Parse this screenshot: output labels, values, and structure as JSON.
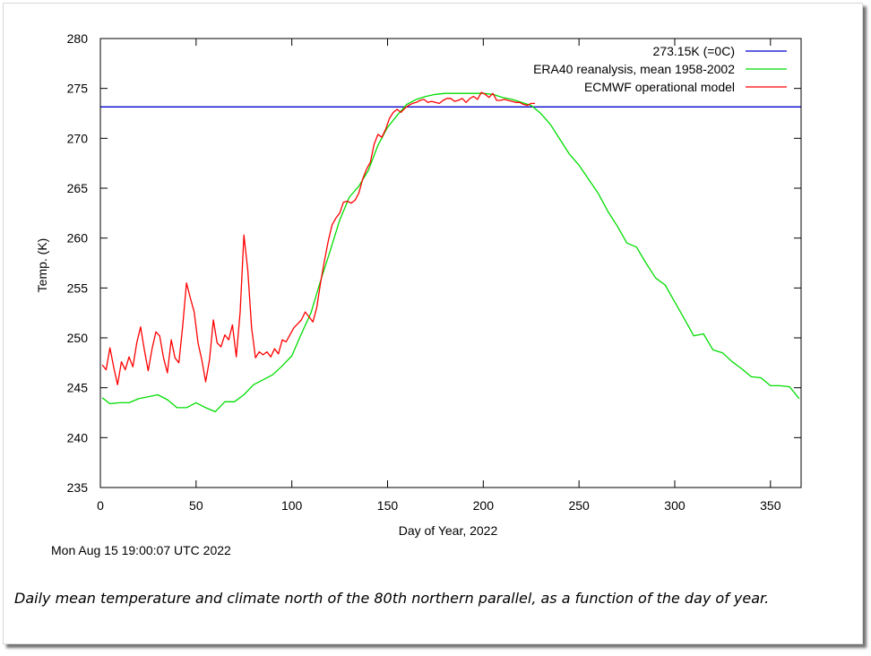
{
  "caption": "Daily mean temperature and climate north of the 80th northern parallel, as a function of the day of year.",
  "timestamp": "Mon Aug 15 19:00:07 UTC 2022",
  "chart_data": {
    "type": "line",
    "xlabel": "Day of Year, 2022",
    "ylabel": "Temp. (K)",
    "xlim": [
      0,
      366
    ],
    "ylim": [
      235,
      280
    ],
    "xticks": [
      0,
      50,
      100,
      150,
      200,
      250,
      300,
      350
    ],
    "yticks": [
      235,
      240,
      245,
      250,
      255,
      260,
      265,
      270,
      275,
      280
    ],
    "grid": false,
    "legend_position": "top-right",
    "series": [
      {
        "name": "273.15K (=0C)",
        "color": "#0000cc",
        "x": [
          0,
          366
        ],
        "y": [
          273.15,
          273.15
        ]
      },
      {
        "name": "ERA40 reanalysis, mean 1958-2002",
        "color": "#00dd00",
        "x": [
          1,
          5,
          10,
          15,
          20,
          25,
          30,
          35,
          40,
          45,
          50,
          55,
          60,
          65,
          70,
          75,
          80,
          85,
          90,
          95,
          100,
          105,
          110,
          115,
          120,
          125,
          130,
          135,
          140,
          145,
          150,
          155,
          160,
          165,
          170,
          175,
          180,
          185,
          190,
          195,
          200,
          205,
          210,
          215,
          220,
          225,
          230,
          235,
          240,
          245,
          250,
          255,
          260,
          265,
          270,
          275,
          280,
          285,
          290,
          295,
          300,
          305,
          310,
          315,
          320,
          325,
          330,
          335,
          340,
          345,
          350,
          355,
          360,
          365
        ],
        "y": [
          244.0,
          243.4,
          243.5,
          243.5,
          243.9,
          244.1,
          244.3,
          243.8,
          243.0,
          243.0,
          243.5,
          243.0,
          242.6,
          243.6,
          243.6,
          244.3,
          245.3,
          245.8,
          246.3,
          247.2,
          248.2,
          250.4,
          252.5,
          255.7,
          258.7,
          261.8,
          264.1,
          265.2,
          266.8,
          269.3,
          271.1,
          272.3,
          273.4,
          273.9,
          274.2,
          274.4,
          274.5,
          274.5,
          274.5,
          274.5,
          274.5,
          274.4,
          274.1,
          273.9,
          273.6,
          273.3,
          272.5,
          271.4,
          269.9,
          268.4,
          267.3,
          265.9,
          264.5,
          262.7,
          261.2,
          259.5,
          259.1,
          257.5,
          256.0,
          255.3,
          253.6,
          251.9,
          250.2,
          250.4,
          248.8,
          248.5,
          247.6,
          246.9,
          246.1,
          246.0,
          245.2,
          245.2,
          245.1,
          243.9
        ]
      },
      {
        "name": "ECMWF operational model",
        "color": "#ff0000",
        "x": [
          1,
          3,
          5,
          7,
          9,
          11,
          13,
          15,
          17,
          19,
          21,
          23,
          25,
          27,
          29,
          31,
          33,
          35,
          37,
          39,
          41,
          43,
          45,
          47,
          49,
          51,
          53,
          55,
          57,
          59,
          61,
          63,
          65,
          67,
          69,
          71,
          73,
          75,
          77,
          79,
          81,
          83,
          85,
          87,
          89,
          91,
          93,
          95,
          97,
          99,
          101,
          103,
          105,
          107,
          109,
          111,
          113,
          115,
          117,
          119,
          121,
          123,
          125,
          127,
          129,
          131,
          133,
          135,
          137,
          139,
          141,
          143,
          145,
          147,
          149,
          151,
          153,
          155,
          157,
          159,
          161,
          163,
          165,
          167,
          169,
          171,
          173,
          175,
          177,
          179,
          181,
          183,
          185,
          187,
          189,
          191,
          193,
          195,
          197,
          199,
          201,
          203,
          205,
          207,
          209,
          211,
          213,
          215,
          217,
          219,
          221,
          223,
          225,
          227
        ],
        "y": [
          247.3,
          246.8,
          249.0,
          247.0,
          245.3,
          247.6,
          246.8,
          248.1,
          247.1,
          249.5,
          251.1,
          248.8,
          246.7,
          248.9,
          250.6,
          250.2,
          248.0,
          246.5,
          249.8,
          248.0,
          247.5,
          251.2,
          255.5,
          254.0,
          252.6,
          249.5,
          247.8,
          245.6,
          247.8,
          251.8,
          249.5,
          249.1,
          250.3,
          249.8,
          251.3,
          248.1,
          252.6,
          260.3,
          256.8,
          251.0,
          248.0,
          248.6,
          248.3,
          248.6,
          248.1,
          248.9,
          248.4,
          249.8,
          249.6,
          250.3,
          251.0,
          251.4,
          251.8,
          252.6,
          252.1,
          251.6,
          253.0,
          255.5,
          257.7,
          259.7,
          261.3,
          262.0,
          262.5,
          263.6,
          263.7,
          263.5,
          263.8,
          264.5,
          265.9,
          266.9,
          267.6,
          269.4,
          270.4,
          270.1,
          270.9,
          272.0,
          272.6,
          272.9,
          272.6,
          273.0,
          273.3,
          273.5,
          273.6,
          273.8,
          273.9,
          273.6,
          273.7,
          273.6,
          273.5,
          273.8,
          274.0,
          274.0,
          273.7,
          273.8,
          274.0,
          273.6,
          274.0,
          274.2,
          273.9,
          274.6,
          274.4,
          274.1,
          274.5,
          273.8,
          273.8,
          273.9,
          273.8,
          273.7,
          273.6,
          273.6,
          273.4,
          273.3,
          273.5,
          273.5
        ]
      }
    ]
  }
}
